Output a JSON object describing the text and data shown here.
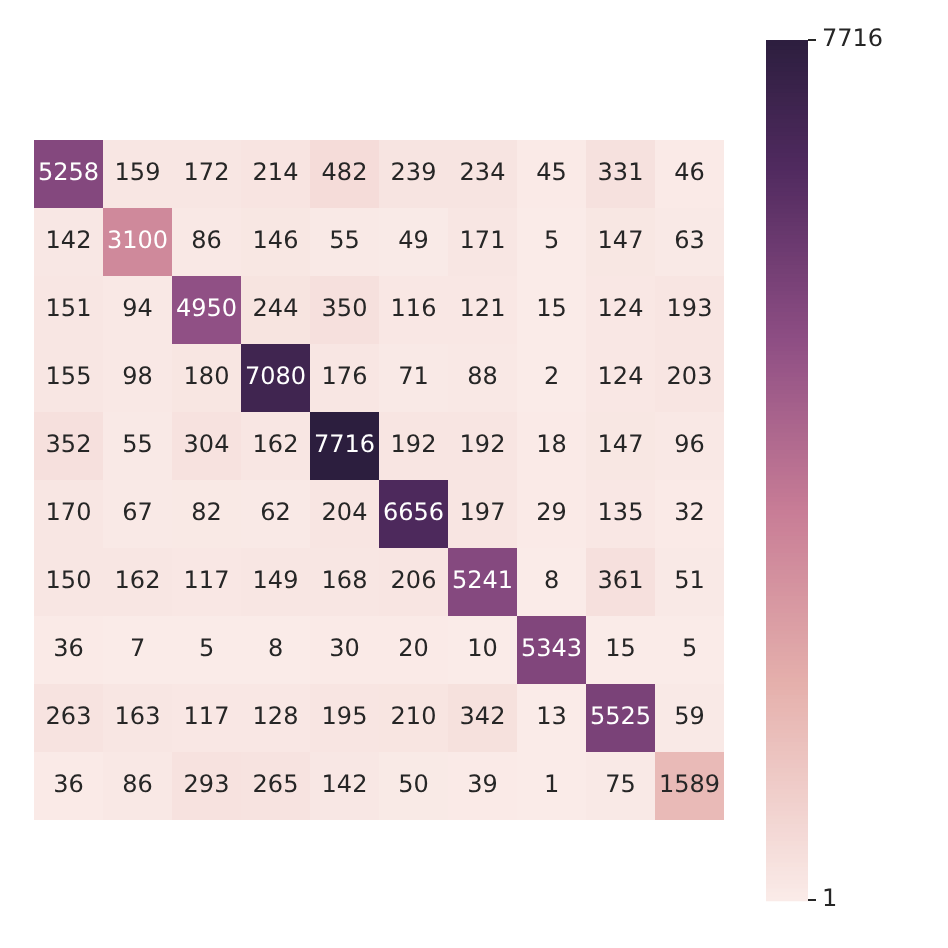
{
  "chart_data": {
    "type": "heatmap",
    "categories": [
      null,
      null,
      null,
      null,
      null,
      null,
      null,
      null,
      null,
      null
    ],
    "y_categories": [
      null,
      null,
      null,
      null,
      null,
      null,
      null,
      null,
      null,
      null
    ],
    "cells": [
      [
        5258,
        159,
        172,
        214,
        482,
        239,
        234,
        45,
        331,
        46
      ],
      [
        142,
        3100,
        86,
        146,
        55,
        49,
        171,
        5,
        147,
        63
      ],
      [
        151,
        94,
        4950,
        244,
        350,
        116,
        121,
        15,
        124,
        193
      ],
      [
        155,
        98,
        180,
        7080,
        176,
        71,
        88,
        2,
        124,
        203
      ],
      [
        352,
        55,
        304,
        162,
        7716,
        192,
        192,
        18,
        147,
        96
      ],
      [
        170,
        67,
        82,
        62,
        204,
        6656,
        197,
        29,
        135,
        32
      ],
      [
        150,
        162,
        117,
        149,
        168,
        206,
        5241,
        8,
        361,
        51
      ],
      [
        36,
        7,
        5,
        8,
        30,
        20,
        10,
        5343,
        15,
        5
      ],
      [
        263,
        163,
        117,
        128,
        195,
        210,
        342,
        13,
        5525,
        59
      ],
      [
        36,
        86,
        293,
        265,
        142,
        50,
        39,
        1,
        75,
        1589
      ]
    ],
    "clim": [
      1,
      7716
    ],
    "cticks": [
      1,
      7716
    ],
    "data_labels": true
  }
}
